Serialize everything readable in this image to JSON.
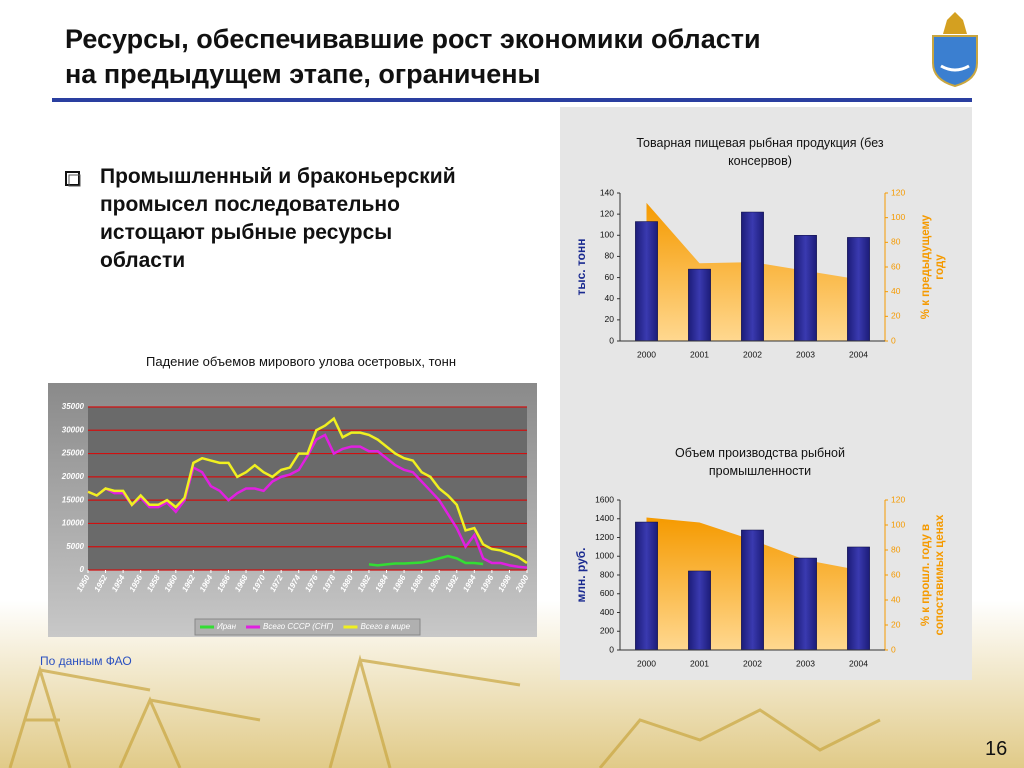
{
  "header": {
    "title_lines": [
      "Ресурсы, обеспечивавшие рост экономики области",
      "на предыдущем этапе, ограничены"
    ]
  },
  "bullet": {
    "lines": [
      "Промышленный и браконьерский",
      "промысел последовательно",
      "истощают рыбные ресурсы",
      "области"
    ]
  },
  "source": "По данным ФАО",
  "page_number": "16",
  "chart_data": [
    {
      "type": "line",
      "title": "Падение объемов мирового улова осетровых, тонн",
      "x": [
        1950,
        1951,
        1952,
        1953,
        1954,
        1955,
        1956,
        1957,
        1958,
        1959,
        1960,
        1961,
        1962,
        1963,
        1964,
        1965,
        1966,
        1967,
        1968,
        1969,
        1970,
        1971,
        1972,
        1973,
        1974,
        1975,
        1976,
        1977,
        1978,
        1979,
        1980,
        1981,
        1982,
        1983,
        1984,
        1985,
        1986,
        1987,
        1988,
        1989,
        1990,
        1991,
        1992,
        1993,
        1994,
        1995,
        1996,
        1997,
        1998,
        1999,
        2000
      ],
      "xlim": [
        1950,
        2000
      ],
      "xticks": [
        1950,
        1952,
        1954,
        1956,
        1958,
        1960,
        1962,
        1964,
        1966,
        1968,
        1970,
        1972,
        1974,
        1976,
        1978,
        1980,
        1982,
        1984,
        1986,
        1988,
        1990,
        1992,
        1994,
        1996,
        1998,
        2000
      ],
      "ylim": [
        0,
        35000
      ],
      "yticks": [
        0,
        5000,
        10000,
        15000,
        20000,
        25000,
        30000,
        35000
      ],
      "grid": true,
      "legend": "bottom",
      "series": [
        {
          "name": "Иран",
          "color": "#33dd33",
          "values": [
            null,
            null,
            null,
            null,
            null,
            null,
            null,
            null,
            null,
            null,
            null,
            null,
            null,
            null,
            null,
            null,
            null,
            null,
            null,
            null,
            null,
            null,
            null,
            null,
            null,
            null,
            null,
            null,
            null,
            null,
            null,
            null,
            1200,
            1000,
            1200,
            1400,
            1400,
            1500,
            1600,
            2000,
            2500,
            3000,
            2500,
            1500,
            1500,
            1300,
            null,
            null,
            null,
            null,
            null
          ]
        },
        {
          "name": "Всего СССР (СНГ)",
          "color": "#e020e0",
          "values": [
            16800,
            16000,
            17500,
            16500,
            16500,
            14000,
            15500,
            13500,
            13500,
            14500,
            12500,
            15000,
            22000,
            21000,
            18000,
            17000,
            15000,
            16500,
            17500,
            17500,
            17000,
            19000,
            20000,
            20500,
            21500,
            24500,
            28000,
            29000,
            25000,
            26000,
            26500,
            26500,
            25500,
            25500,
            24000,
            22500,
            21500,
            21000,
            19000,
            17000,
            15000,
            12000,
            9000,
            5000,
            7500,
            2500,
            1500,
            1500,
            1000,
            700,
            500
          ]
        },
        {
          "name": "Всего в мире",
          "color": "#f0f020",
          "values": [
            16800,
            16000,
            17500,
            17000,
            17000,
            14000,
            16000,
            14000,
            14000,
            15000,
            13500,
            15500,
            23000,
            24000,
            23500,
            23000,
            23000,
            20000,
            21000,
            22500,
            21000,
            20000,
            21500,
            22000,
            25000,
            25000,
            30000,
            31000,
            32500,
            28500,
            29500,
            29500,
            29000,
            28000,
            26500,
            25000,
            24000,
            23500,
            21000,
            20000,
            17500,
            16000,
            14000,
            8500,
            9000,
            5500,
            4500,
            4200,
            3500,
            2800,
            1500
          ]
        }
      ]
    },
    {
      "type": "combo",
      "title": "Товарная пищевая рыбная продукция (без консервов)",
      "categories": [
        "2000",
        "2001",
        "2002",
        "2003",
        "2004"
      ],
      "ylabel": "тыс. тонн",
      "y2label_lines": [
        "% к предыдущему",
        "году"
      ],
      "ylim": [
        0,
        140
      ],
      "yticks": [
        0,
        20,
        40,
        60,
        80,
        100,
        120,
        140
      ],
      "y2lim": [
        0,
        120
      ],
      "y2ticks": [
        0,
        20,
        40,
        60,
        80,
        100,
        120
      ],
      "series": [
        {
          "type": "area",
          "axis": "y2",
          "color": "#f59a00",
          "values": [
            112,
            63,
            64,
            57,
            50
          ]
        },
        {
          "type": "bar",
          "color": "#1c1c78",
          "values": [
            113,
            68,
            122,
            100,
            98
          ]
        }
      ]
    },
    {
      "type": "combo",
      "title": "Объем производства рыбной промышленности",
      "categories": [
        "2000",
        "2001",
        "2002",
        "2003",
        "2004"
      ],
      "ylabel": "млн. руб.",
      "y2label_lines": [
        "% к прошл. году в",
        "сопоставимых ценах"
      ],
      "ylim": [
        0,
        1600
      ],
      "yticks": [
        0,
        200,
        400,
        600,
        800,
        1000,
        1200,
        1400,
        1600
      ],
      "y2lim": [
        0,
        120
      ],
      "y2ticks": [
        0,
        20,
        40,
        60,
        80,
        100,
        120
      ],
      "series": [
        {
          "type": "area",
          "axis": "y2",
          "color": "#f59a00",
          "values": [
            106,
            102,
            88,
            72,
            64
          ]
        },
        {
          "type": "bar",
          "color": "#1c1c78",
          "values": [
            1365,
            843,
            1280,
            981,
            1099
          ]
        }
      ]
    }
  ]
}
